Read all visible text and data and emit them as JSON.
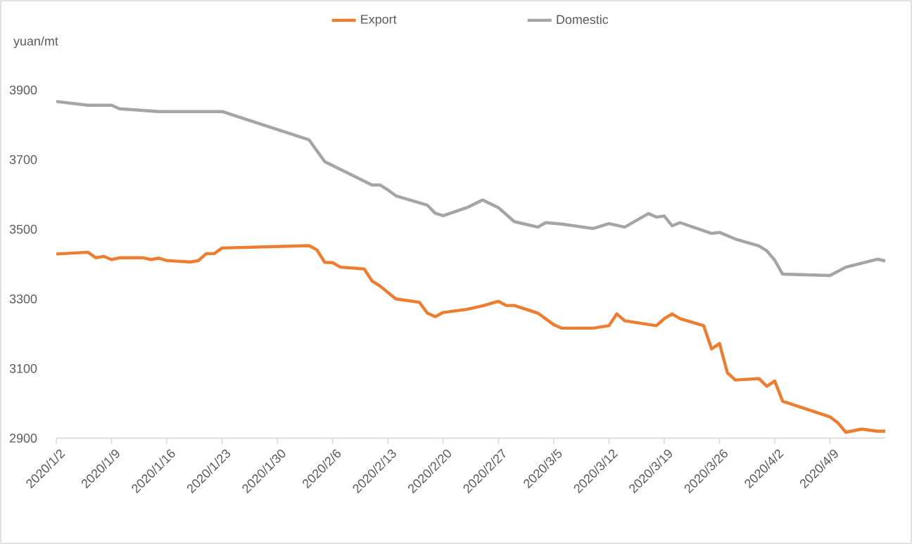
{
  "chart_data": {
    "type": "line",
    "ylabel": "yuan/mt",
    "legend": "top",
    "xlim": [
      "2020-01-02",
      "2020-04-16"
    ],
    "ylim": [
      2900,
      3900
    ],
    "yticks": [
      2900,
      3100,
      3300,
      3500,
      3700,
      3900
    ],
    "xticks": [
      {
        "value": "2020-01-02",
        "label": "2020/1/2"
      },
      {
        "value": "2020-01-09",
        "label": "2020/1/9"
      },
      {
        "value": "2020-01-16",
        "label": "2020/1/16"
      },
      {
        "value": "2020-01-23",
        "label": "2020/1/23"
      },
      {
        "value": "2020-01-30",
        "label": "2020/1/30"
      },
      {
        "value": "2020-02-06",
        "label": "2020/2/6"
      },
      {
        "value": "2020-02-13",
        "label": "2020/2/13"
      },
      {
        "value": "2020-02-20",
        "label": "2020/2/20"
      },
      {
        "value": "2020-02-27",
        "label": "2020/2/27"
      },
      {
        "value": "2020-03-05",
        "label": "2020/3/5"
      },
      {
        "value": "2020-03-12",
        "label": "2020/3/12"
      },
      {
        "value": "2020-03-19",
        "label": "2020/3/19"
      },
      {
        "value": "2020-03-26",
        "label": "2020/3/26"
      },
      {
        "value": "2020-04-02",
        "label": "2020/4/2"
      },
      {
        "value": "2020-04-09",
        "label": "2020/4/9"
      }
    ],
    "series": [
      {
        "name": "Export",
        "color": "#ed7d31",
        "x": [
          "2020-01-02",
          "2020-01-06",
          "2020-01-07",
          "2020-01-08",
          "2020-01-09",
          "2020-01-10",
          "2020-01-13",
          "2020-01-14",
          "2020-01-15",
          "2020-01-16",
          "2020-01-19",
          "2020-01-20",
          "2020-01-21",
          "2020-01-22",
          "2020-01-23",
          "2020-02-03",
          "2020-02-04",
          "2020-02-05",
          "2020-02-06",
          "2020-02-07",
          "2020-02-10",
          "2020-02-11",
          "2020-02-12",
          "2020-02-14",
          "2020-02-17",
          "2020-02-18",
          "2020-02-19",
          "2020-02-20",
          "2020-02-23",
          "2020-02-25",
          "2020-02-27",
          "2020-02-28",
          "2020-02-29",
          "2020-03-03",
          "2020-03-05",
          "2020-03-06",
          "2020-03-10",
          "2020-03-12",
          "2020-03-13",
          "2020-03-14",
          "2020-03-18",
          "2020-03-19",
          "2020-03-20",
          "2020-03-21",
          "2020-03-24",
          "2020-03-25",
          "2020-03-26",
          "2020-03-27",
          "2020-03-28",
          "2020-03-31",
          "2020-04-01",
          "2020-04-02",
          "2020-04-03",
          "2020-04-09",
          "2020-04-10",
          "2020-04-11",
          "2020-04-13",
          "2020-04-15",
          "2020-04-16"
        ],
        "values": [
          3429,
          3434,
          3418,
          3422,
          3413,
          3418,
          3418,
          3413,
          3417,
          3410,
          3406,
          3410,
          3430,
          3430,
          3446,
          3453,
          3441,
          3405,
          3404,
          3391,
          3386,
          3351,
          3337,
          3300,
          3290,
          3259,
          3249,
          3261,
          3270,
          3280,
          3293,
          3281,
          3281,
          3259,
          3226,
          3216,
          3216,
          3223,
          3257,
          3237,
          3223,
          3243,
          3257,
          3243,
          3223,
          3156,
          3172,
          3088,
          3067,
          3071,
          3049,
          3064,
          3006,
          2961,
          2944,
          2917,
          2926,
          2920,
          2920
        ]
      },
      {
        "name": "Domestic",
        "color": "#a5a5a5",
        "x": [
          "2020-01-02",
          "2020-01-06",
          "2020-01-09",
          "2020-01-10",
          "2020-01-15",
          "2020-01-23",
          "2020-02-03",
          "2020-02-05",
          "2020-02-11",
          "2020-02-12",
          "2020-02-13",
          "2020-02-14",
          "2020-02-18",
          "2020-02-19",
          "2020-02-20",
          "2020-02-23",
          "2020-02-25",
          "2020-02-27",
          "2020-02-29",
          "2020-03-03",
          "2020-03-04",
          "2020-03-06",
          "2020-03-10",
          "2020-03-12",
          "2020-03-14",
          "2020-03-17",
          "2020-03-18",
          "2020-03-19",
          "2020-03-20",
          "2020-03-21",
          "2020-03-25",
          "2020-03-26",
          "2020-03-28",
          "2020-03-31",
          "2020-04-01",
          "2020-04-02",
          "2020-04-03",
          "2020-04-09",
          "2020-04-11",
          "2020-04-15",
          "2020-04-16"
        ],
        "values": [
          3867,
          3856,
          3856,
          3846,
          3838,
          3838,
          3757,
          3694,
          3627,
          3627,
          3613,
          3596,
          3569,
          3546,
          3539,
          3562,
          3584,
          3562,
          3522,
          3506,
          3519,
          3515,
          3502,
          3516,
          3506,
          3545,
          3535,
          3538,
          3510,
          3519,
          3488,
          3491,
          3472,
          3452,
          3438,
          3411,
          3371,
          3367,
          3391,
          3414,
          3409
        ]
      }
    ]
  }
}
